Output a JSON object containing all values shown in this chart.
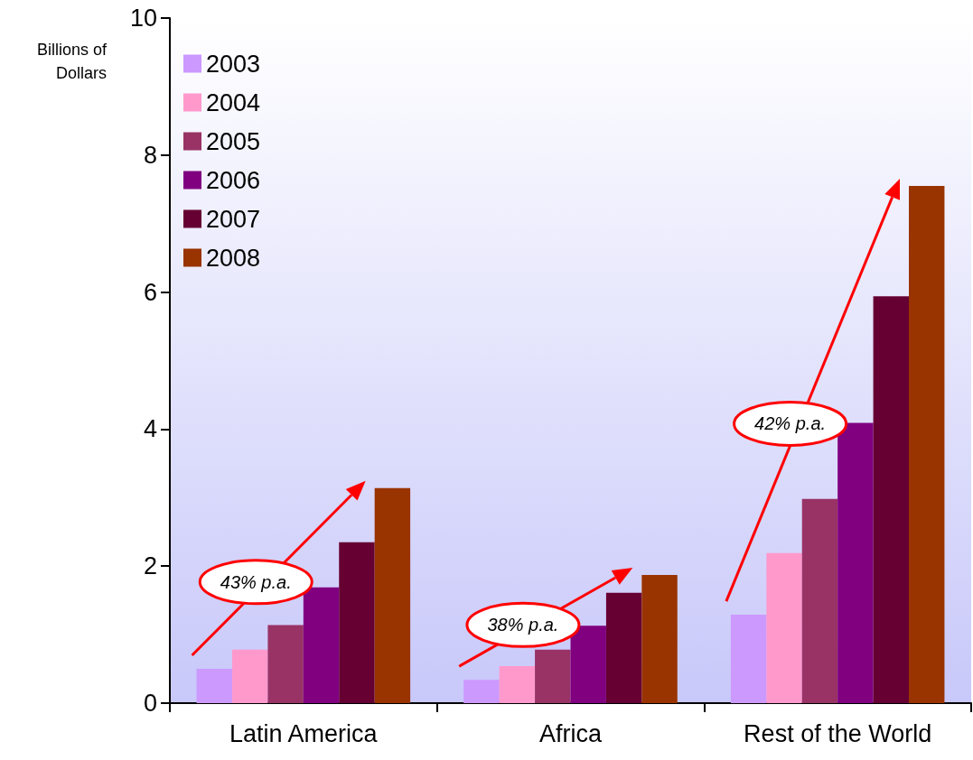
{
  "chart_data": {
    "type": "bar",
    "ylabel": "Billions of\nDollars",
    "categories": [
      "Latin America",
      "Africa",
      "Rest of the World"
    ],
    "series": [
      {
        "name": "2003",
        "color": "#cc99ff",
        "values": [
          0.5,
          0.34,
          1.29
        ]
      },
      {
        "name": "2004",
        "color": "#ff99cc",
        "values": [
          0.78,
          0.54,
          2.19
        ]
      },
      {
        "name": "2005",
        "color": "#993366",
        "values": [
          1.14,
          0.78,
          2.98
        ]
      },
      {
        "name": "2006",
        "color": "#800080",
        "values": [
          1.69,
          1.13,
          4.09
        ]
      },
      {
        "name": "2007",
        "color": "#660033",
        "values": [
          2.35,
          1.61,
          5.94
        ]
      },
      {
        "name": "2008",
        "color": "#993300",
        "values": [
          3.14,
          1.87,
          7.55
        ]
      }
    ],
    "ylim": [
      0,
      10
    ],
    "yticks": [
      0,
      2,
      4,
      6,
      8,
      10
    ],
    "grid": false,
    "legend": "top left",
    "annotations": [
      "43% p.a.",
      "38% p.a.",
      "42% p.a."
    ]
  }
}
